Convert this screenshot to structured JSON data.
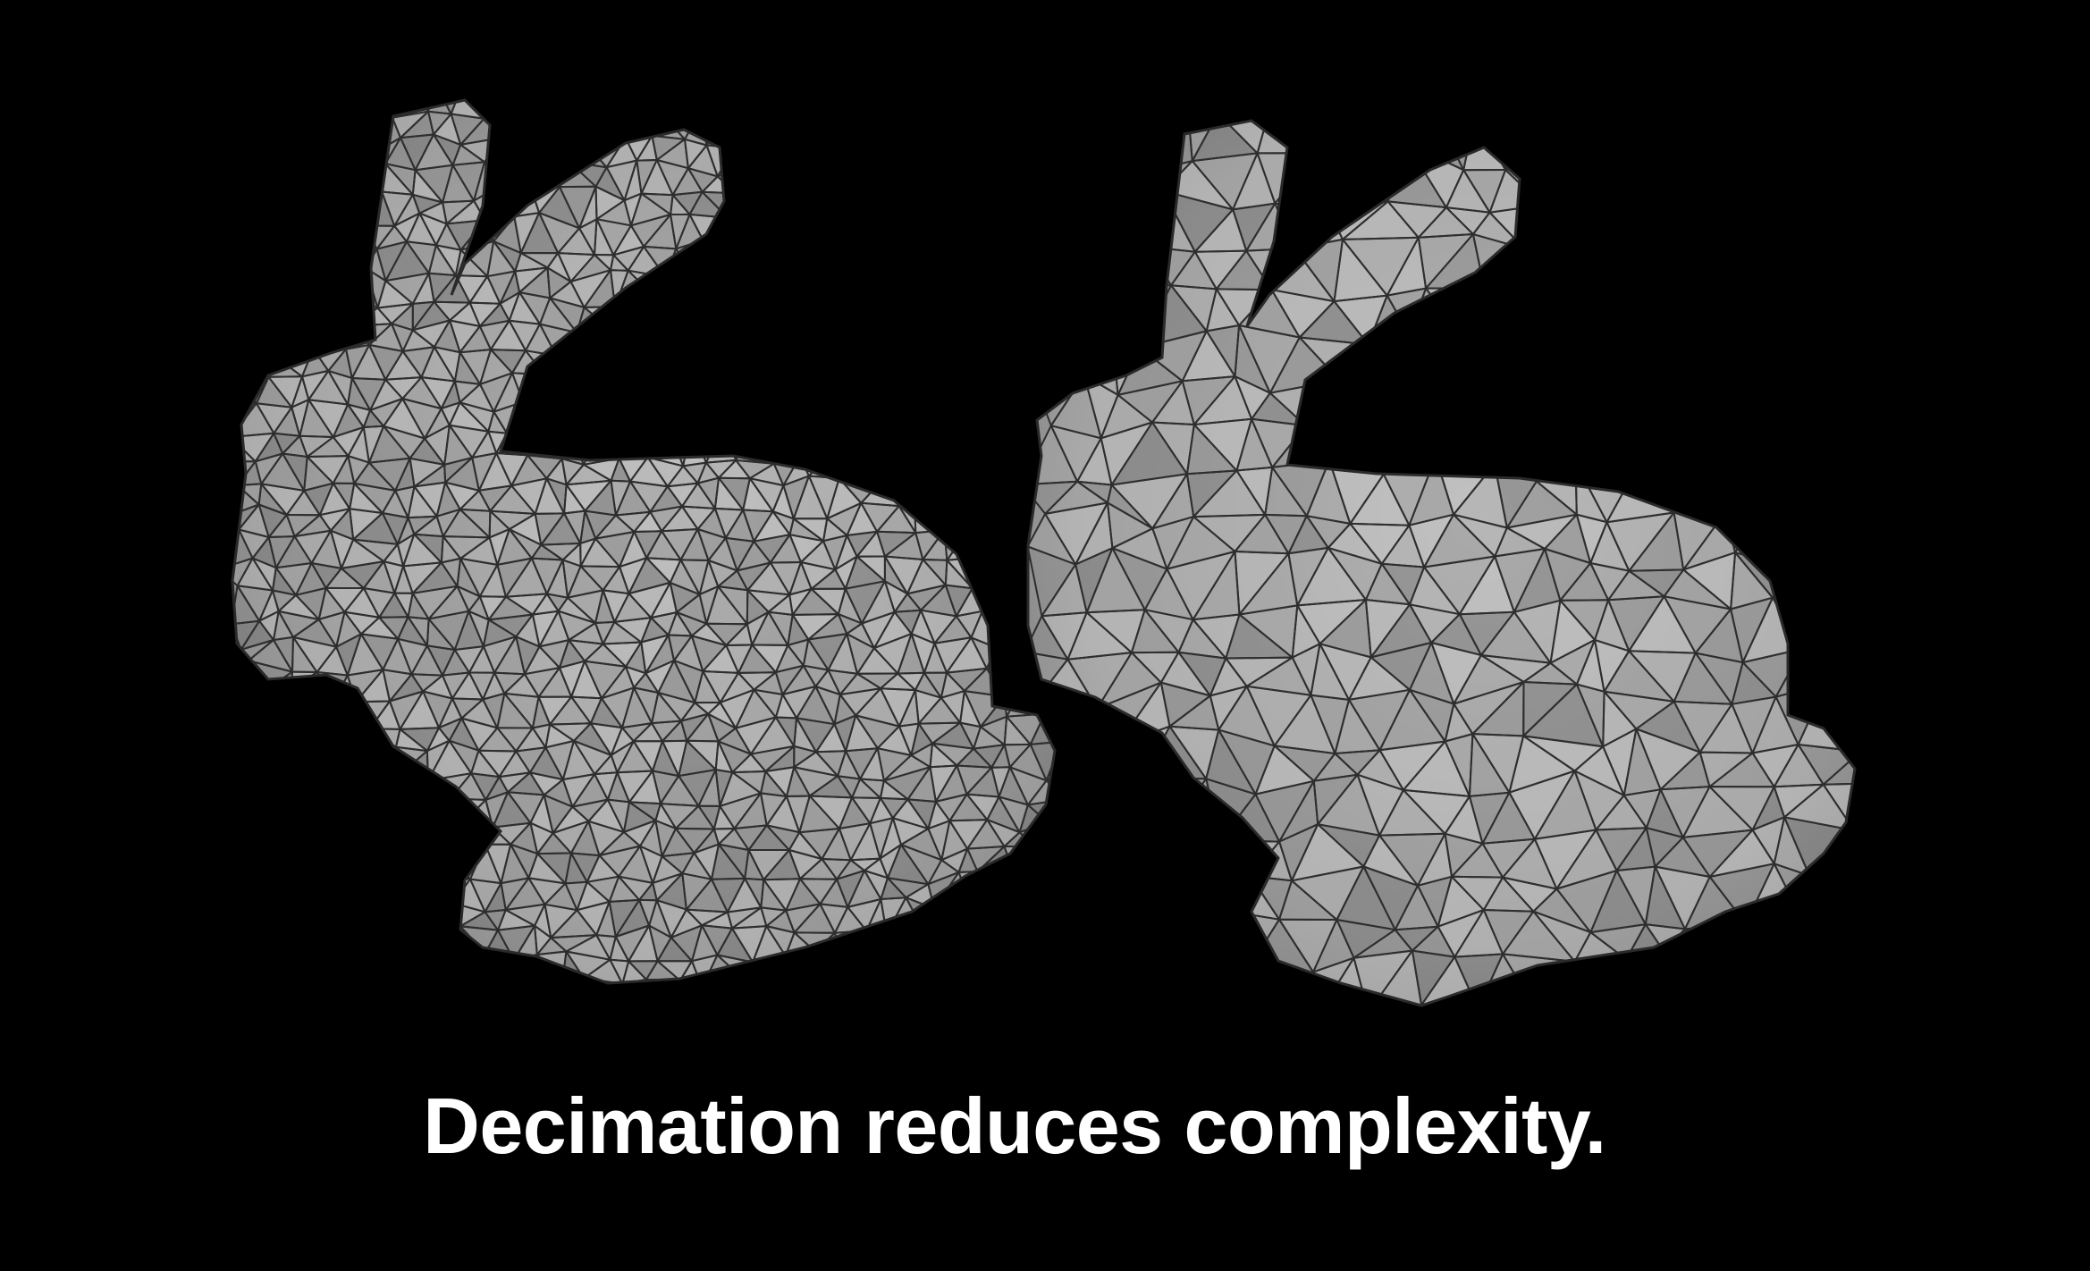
{
  "slide": {
    "caption": "Decimation reduces complexity.",
    "colors": {
      "background": "#000000",
      "mesh_fill_light": "#b4b4b4",
      "mesh_fill_mid": "#969696",
      "mesh_fill_dark": "#5e5e5e",
      "mesh_edge": "#2e2e2e",
      "caption_text": "#ffffff"
    }
  },
  "images": {
    "left": {
      "subject": "bunny-mesh",
      "density": "fine"
    },
    "right": {
      "subject": "bunny-mesh",
      "density": "coarse"
    }
  }
}
